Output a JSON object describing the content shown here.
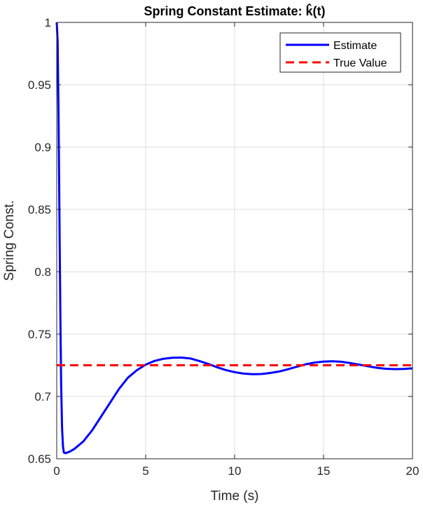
{
  "chart_data": {
    "type": "line",
    "title": "Spring Constant Estimate: k̂(t)",
    "xlabel": "Time (s)",
    "ylabel": "Spring Const.",
    "xlim": [
      0,
      20
    ],
    "ylim": [
      0.65,
      1
    ],
    "xticks": [
      0,
      5,
      10,
      15,
      20
    ],
    "xtick_labels": [
      "0",
      "5",
      "10",
      "15",
      "20"
    ],
    "yticks": [
      0.65,
      0.7,
      0.75,
      0.8,
      0.85,
      0.9,
      0.95,
      1
    ],
    "ytick_labels": [
      "0.65",
      "0.7",
      "0.75",
      "0.8",
      "0.85",
      "0.9",
      "0.95",
      "1"
    ],
    "grid": true,
    "legend_position": "top-right",
    "series": [
      {
        "name": "Estimate",
        "style": "solid",
        "color": "#0000ff",
        "x": [
          0,
          0.05,
          0.1,
          0.15,
          0.2,
          0.25,
          0.3,
          0.35,
          0.4,
          0.5,
          0.7,
          1.0,
          1.5,
          2.0,
          2.5,
          3.0,
          3.5,
          4.0,
          4.5,
          5.0,
          5.5,
          6.0,
          6.5,
          7.0,
          7.5,
          8.0,
          8.5,
          9.0,
          9.5,
          10.0,
          10.5,
          11.0,
          11.5,
          12.0,
          12.5,
          13.0,
          13.5,
          14.0,
          14.5,
          15.0,
          15.5,
          16.0,
          16.5,
          17.0,
          17.5,
          18.0,
          18.5,
          19.0,
          19.5,
          20.0
        ],
        "y": [
          1.0,
          0.985,
          0.93,
          0.85,
          0.77,
          0.71,
          0.675,
          0.66,
          0.655,
          0.6545,
          0.6555,
          0.658,
          0.664,
          0.673,
          0.684,
          0.695,
          0.706,
          0.715,
          0.721,
          0.7255,
          0.7285,
          0.7302,
          0.731,
          0.7312,
          0.7305,
          0.7285,
          0.7262,
          0.7235,
          0.7212,
          0.7195,
          0.7183,
          0.7178,
          0.718,
          0.7188,
          0.72,
          0.7218,
          0.7238,
          0.7258,
          0.7272,
          0.728,
          0.7282,
          0.7278,
          0.7268,
          0.7255,
          0.7242,
          0.723,
          0.7222,
          0.7219,
          0.722,
          0.7225
        ]
      },
      {
        "name": "True Value",
        "style": "dashed",
        "color": "#ff0000",
        "x": [
          0,
          20
        ],
        "y": [
          0.725,
          0.725
        ]
      }
    ]
  }
}
